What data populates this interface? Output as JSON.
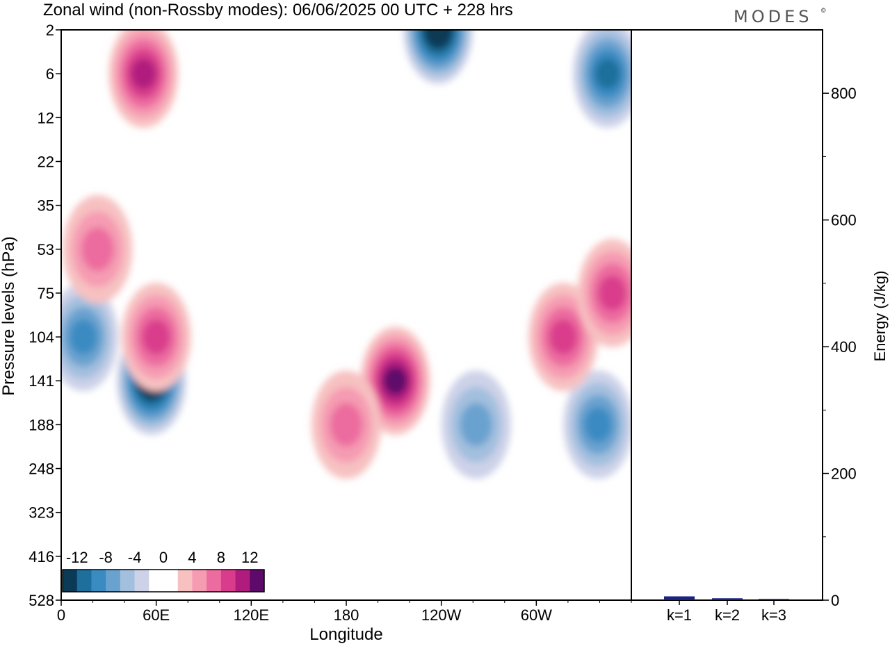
{
  "header": {
    "title": "Zonal wind (non-Rossby modes):  06/06/2025  00 UTC  + 228 hrs",
    "brand": "MODES",
    "brand_mark": "©"
  },
  "chart_data": [
    {
      "type": "heatmap",
      "title": "Zonal wind (non-Rossby modes):  06/06/2025  00 UTC  + 228 hrs",
      "xlabel": "Longitude",
      "ylabel": "Pressure levels (hPa)",
      "x_ticks": [
        "0",
        "60E",
        "120E",
        "180",
        "120W",
        "60W"
      ],
      "x_tick_values": [
        0,
        60,
        120,
        180,
        240,
        300
      ],
      "xlim": [
        0,
        360
      ],
      "y_ticks": [
        "2",
        "6",
        "12",
        "22",
        "35",
        "53",
        "75",
        "104",
        "141",
        "188",
        "248",
        "323",
        "416",
        "528"
      ],
      "colorbar": {
        "labels": [
          "-12",
          "-8",
          "-4",
          "0",
          "4",
          "8",
          "12"
        ],
        "colors": [
          "#0b3a57",
          "#1e6f9c",
          "#3a8bc2",
          "#6aa2cf",
          "#a3bfde",
          "#cdd2e8",
          "#ffffff",
          "#ffffff",
          "#f7c1c1",
          "#f59bb2",
          "#ec6c9f",
          "#d93c8c",
          "#b01c7e",
          "#5e0a6b"
        ],
        "location": "bottom-left"
      },
      "features": [
        {
          "lon": 57,
          "level": "141",
          "value": -14
        },
        {
          "lon": 14,
          "level": "104",
          "value": -8
        },
        {
          "lon": 238,
          "level": "2",
          "value": -14
        },
        {
          "lon": 345,
          "level": "6",
          "value": -10
        },
        {
          "lon": 339,
          "level": "188",
          "value": -9
        },
        {
          "lon": 262,
          "level": "188",
          "value": -6
        },
        {
          "lon": 211,
          "level": "141",
          "value": 12
        },
        {
          "lon": 180,
          "level": "188",
          "value": 7
        },
        {
          "lon": 317,
          "level": "104",
          "value": 9
        },
        {
          "lon": 348,
          "level": "75",
          "value": 9
        },
        {
          "lon": 52,
          "level": "6",
          "value": 10
        },
        {
          "lon": 60,
          "level": "104",
          "value": 8
        },
        {
          "lon": 23,
          "level": "53",
          "value": 7
        }
      ]
    },
    {
      "type": "bar",
      "ylabel": "Energy (J/kg)",
      "categories": [
        "k=1",
        "k=2",
        "k=3"
      ],
      "values": [
        6,
        3,
        2
      ],
      "ylim": [
        0,
        900
      ],
      "y_ticks": [
        "0",
        "200",
        "400",
        "600",
        "800"
      ],
      "bar_color": "#1a237e"
    }
  ]
}
